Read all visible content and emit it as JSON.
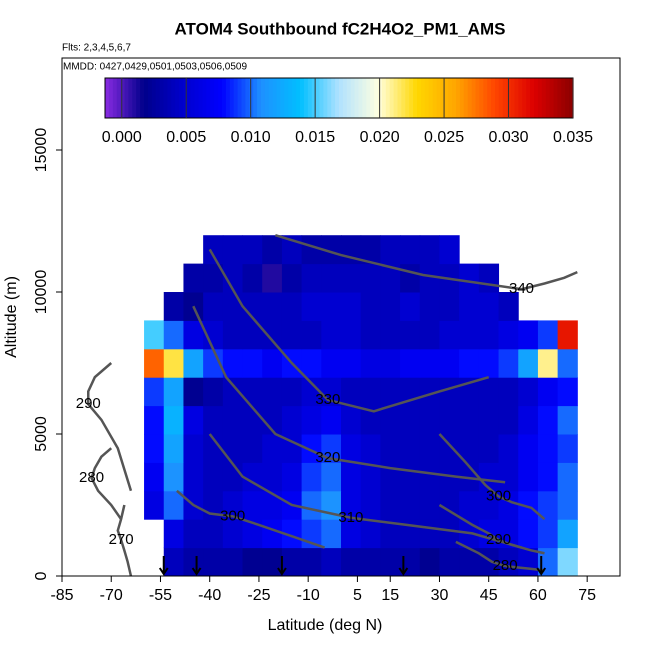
{
  "chart_data": {
    "type": "heatmap",
    "title": "ATOM4 Southbound fC2H4O2_PM1_AMS",
    "subtitle": "Flts: 2,3,4,5,6,7",
    "annotation": "MMDD: 0427,0429,0501,0503,0506,0509",
    "xlabel": "Latitude (deg N)",
    "ylabel": "Altitude (m)",
    "xlim": [
      -85,
      85
    ],
    "ylim": [
      0,
      18240
    ],
    "xticks": [
      -85,
      -70,
      -55,
      -40,
      -25,
      -10,
      5,
      15,
      30,
      45,
      60,
      75
    ],
    "yticks": [
      0,
      5000,
      10000,
      15000
    ],
    "xbins": [
      -60,
      -54,
      -48,
      -42,
      -36,
      -30,
      -24,
      -18,
      -12,
      -6,
      0,
      6,
      12,
      18,
      24,
      30,
      36,
      42,
      48,
      54,
      60,
      66,
      72
    ],
    "ybins": [
      0,
      1000,
      2000,
      3000,
      4000,
      5000,
      6000,
      7000,
      8000,
      9000,
      10000,
      11000,
      12000
    ],
    "z": [
      [
        null,
        0.004,
        0.003,
        0.003,
        0.003,
        0.002,
        0.002,
        0.003,
        0.003,
        0.004,
        0.003,
        0.003,
        0.003,
        0.003,
        0.002,
        0.003,
        0.003,
        0.003,
        0.004,
        0.005,
        0.01,
        0.016
      ],
      [
        null,
        0.006,
        0.004,
        0.004,
        0.005,
        0.006,
        0.007,
        0.008,
        0.009,
        0.01,
        0.006,
        0.005,
        0.004,
        0.004,
        0.004,
        0.004,
        0.005,
        0.006,
        0.006,
        0.008,
        0.009,
        0.012
      ],
      [
        0.006,
        0.01,
        0.005,
        0.004,
        0.005,
        0.006,
        0.006,
        0.007,
        0.01,
        0.011,
        0.006,
        0.005,
        0.004,
        0.004,
        0.004,
        0.004,
        0.005,
        0.005,
        0.006,
        0.008,
        0.009,
        0.01
      ],
      [
        0.007,
        0.011,
        0.005,
        0.004,
        0.004,
        0.005,
        0.005,
        0.006,
        0.009,
        0.01,
        0.006,
        0.005,
        0.004,
        0.004,
        0.004,
        0.004,
        0.004,
        0.005,
        0.005,
        0.007,
        0.008,
        0.01
      ],
      [
        0.008,
        0.012,
        0.005,
        0.004,
        0.004,
        0.004,
        0.005,
        0.005,
        0.008,
        0.009,
        0.006,
        0.005,
        0.004,
        0.004,
        0.004,
        0.004,
        0.004,
        0.004,
        0.005,
        0.007,
        0.008,
        0.009
      ],
      [
        0.008,
        0.013,
        0.006,
        0.004,
        0.004,
        0.004,
        0.004,
        0.005,
        0.006,
        0.007,
        0.005,
        0.004,
        0.004,
        0.004,
        0.004,
        0.004,
        0.004,
        0.004,
        0.004,
        0.006,
        0.008,
        0.01
      ],
      [
        0.009,
        0.012,
        0.002,
        0.003,
        0.004,
        0.004,
        0.004,
        0.004,
        0.005,
        0.005,
        0.004,
        0.004,
        0.004,
        0.004,
        0.004,
        0.004,
        0.004,
        0.004,
        0.004,
        0.005,
        0.007,
        0.008
      ],
      [
        0.028,
        0.022,
        0.012,
        0.009,
        0.008,
        0.008,
        0.007,
        0.008,
        0.008,
        0.007,
        0.007,
        0.006,
        0.006,
        0.007,
        0.007,
        0.007,
        0.008,
        0.008,
        0.009,
        0.012,
        0.021,
        0.01
      ],
      [
        0.015,
        0.01,
        0.006,
        0.005,
        0.004,
        0.004,
        0.004,
        0.004,
        0.004,
        0.005,
        0.005,
        0.004,
        0.004,
        0.004,
        0.004,
        0.005,
        0.005,
        0.005,
        0.006,
        0.007,
        0.009,
        0.031
      ],
      [
        null,
        0.003,
        0.002,
        0.004,
        0.004,
        0.004,
        0.004,
        0.004,
        0.005,
        0.005,
        0.005,
        0.004,
        0.004,
        0.005,
        0.004,
        0.004,
        0.005,
        0.005,
        0.004,
        null,
        null,
        null
      ],
      [
        null,
        null,
        0.003,
        0.003,
        0.004,
        0.003,
        0.001,
        0.003,
        0.004,
        0.004,
        0.004,
        0.004,
        0.004,
        0.003,
        0.004,
        0.004,
        0.005,
        0.004,
        null,
        null,
        null,
        null
      ],
      [
        null,
        null,
        null,
        0.004,
        0.004,
        0.004,
        0.003,
        0.004,
        0.003,
        0.003,
        0.003,
        0.003,
        0.004,
        0.004,
        0.004,
        0.005,
        null,
        null,
        null,
        null,
        null,
        null
      ]
    ],
    "colorbar_lim": [
      -0.0013,
      0.035
    ],
    "colorbar_colors": [
      "#8a2be2",
      "#00008b",
      "#0000cd",
      "#0000ff",
      "#1e90ff",
      "#00bfff",
      "#b0e2ff",
      "#ffffe0",
      "#ffd700",
      "#ffa500",
      "#ff4500",
      "#dc0000",
      "#8b0000"
    ],
    "colorbar_ticks": [
      {
        "value": 0,
        "label": "0.000"
      },
      {
        "value": 0.005,
        "label": "0.005"
      },
      {
        "value": 0.01,
        "label": "0.010"
      },
      {
        "value": 0.015,
        "label": "0.015"
      },
      {
        "value": 0.02,
        "label": "0.020"
      },
      {
        "value": 0.025,
        "label": "0.025"
      },
      {
        "value": 0.03,
        "label": "0.030"
      },
      {
        "value": 0.035,
        "label": "0.035"
      }
    ],
    "contour_color": "#555555",
    "contours": [
      {
        "level": 340,
        "x": [
          -20,
          0,
          25,
          55,
          62,
          68,
          72
        ],
        "y": [
          12000,
          11300,
          10600,
          10100,
          10300,
          10500,
          10700
        ]
      },
      {
        "level": 330,
        "x": [
          -40,
          -30,
          -15,
          -4,
          10,
          30,
          45
        ],
        "y": [
          11500,
          9500,
          7500,
          6200,
          5800,
          6500,
          7000
        ]
      },
      {
        "level": 320,
        "x": [
          -45,
          -35,
          -20,
          -4,
          15,
          35,
          50
        ],
        "y": [
          9500,
          7000,
          5000,
          4150,
          3800,
          3500,
          3300
        ]
      },
      {
        "level": 310,
        "x": [
          -40,
          -30,
          -15,
          3,
          20,
          40,
          55
        ],
        "y": [
          5000,
          3500,
          2500,
          2050,
          1800,
          1500,
          1000
        ]
      },
      {
        "level": 300,
        "x": [
          -50,
          -45,
          -40,
          -33,
          -25,
          -15,
          -5
        ],
        "y": [
          3000,
          2500,
          2200,
          2100,
          1800,
          1400,
          1000
        ]
      },
      {
        "level": 300,
        "x": [
          30,
          38,
          44,
          48,
          52,
          58,
          62
        ],
        "y": [
          5000,
          4000,
          3200,
          2800,
          2600,
          2400,
          2000
        ]
      },
      {
        "level": 290,
        "x": [
          30,
          40,
          45,
          48,
          52,
          58,
          62
        ],
        "y": [
          2500,
          1800,
          1500,
          1270,
          1100,
          900,
          800
        ]
      },
      {
        "level": 290,
        "x": [
          -70,
          -75,
          -77,
          -77,
          -73,
          -68,
          -64
        ],
        "y": [
          7500,
          7000,
          6500,
          6050,
          5500,
          4500,
          3000
        ]
      },
      {
        "level": 280,
        "x": [
          35,
          42,
          46,
          50,
          54,
          58,
          62
        ],
        "y": [
          1200,
          800,
          500,
          350,
          300,
          250,
          200
        ]
      },
      {
        "level": 280,
        "x": [
          -70,
          -73,
          -75,
          -76,
          -74,
          -70,
          -67
        ],
        "y": [
          4500,
          4200,
          3800,
          3450,
          3000,
          2500,
          2000
        ]
      },
      {
        "level": 270,
        "x": [
          -66,
          -67,
          -68,
          -67,
          -66,
          -65,
          -64
        ],
        "y": [
          2500,
          2000,
          1600,
          1270,
          900,
          500,
          0
        ]
      }
    ],
    "markers_x": [
      -54,
      -44,
      -18,
      19,
      61
    ]
  }
}
